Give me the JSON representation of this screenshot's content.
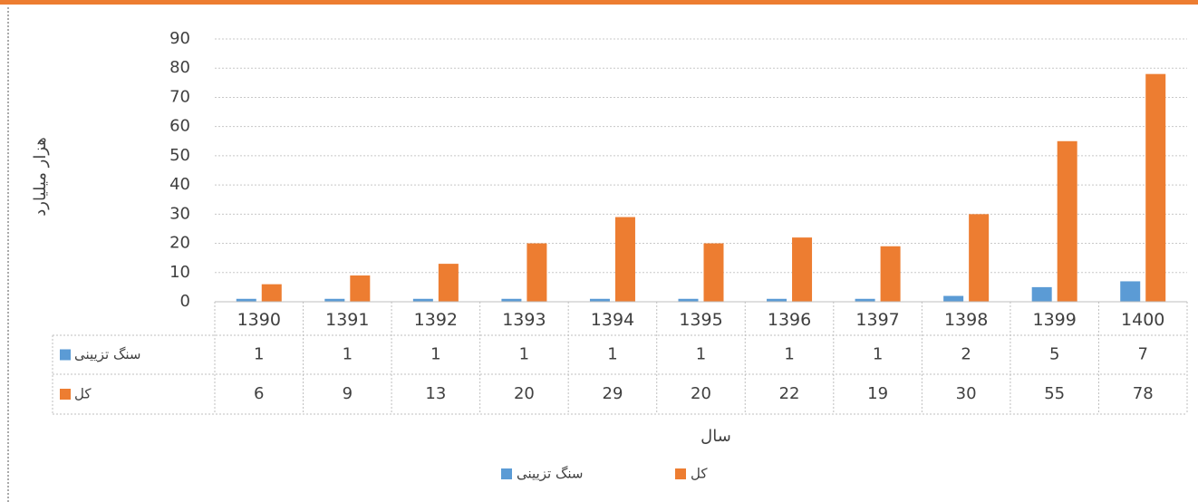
{
  "chart_data": {
    "type": "bar",
    "y_axis_label": "هزار میلیارد",
    "x_axis_label": "سال",
    "categories": [
      "1390",
      "1391",
      "1392",
      "1393",
      "1394",
      "1395",
      "1396",
      "1397",
      "1398",
      "1399",
      "1400"
    ],
    "series": [
      {
        "name": "سنگ تزیینی",
        "color": "#5b9bd5",
        "values": [
          1,
          1,
          1,
          1,
          1,
          1,
          1,
          1,
          2,
          5,
          7
        ]
      },
      {
        "name": "کل",
        "color": "#ed7d31",
        "values": [
          6,
          9,
          13,
          20,
          29,
          20,
          22,
          19,
          30,
          55,
          78
        ]
      }
    ],
    "ylim": [
      0,
      90
    ],
    "yticks": [
      0,
      10,
      20,
      30,
      40,
      50,
      60,
      70,
      80,
      90
    ],
    "grid": true,
    "data_table": true,
    "legend": "bottom"
  }
}
